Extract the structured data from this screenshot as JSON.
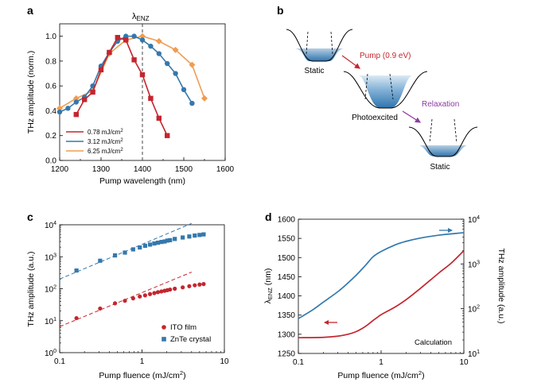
{
  "figure": {
    "panels": [
      "a",
      "b",
      "c",
      "d"
    ]
  },
  "chart_data": [
    {
      "panel": "a",
      "type": "line",
      "annotation": "λ",
      "annotation_sub": "ENZ",
      "annotation_x": 1400,
      "xlabel": "Pump wavelength (nm)",
      "ylabel": "THz amplitude  (norm.)",
      "xlim": [
        1200,
        1600
      ],
      "ylim": [
        0,
        1.1
      ],
      "xticks": [
        1200,
        1300,
        1400,
        1500,
        1600
      ],
      "yticks": [
        "0.0",
        "0.2",
        "0.4",
        "0.6",
        "0.8",
        "1.0"
      ],
      "legend_placement": "bottom-left",
      "series": [
        {
          "name": "0.78 mJ/cm",
          "sup": "2",
          "color": "#c4262e",
          "marker": "square",
          "x": [
            1240,
            1260,
            1280,
            1300,
            1320,
            1340,
            1360,
            1380,
            1400,
            1420,
            1440,
            1460
          ],
          "y": [
            0.37,
            0.49,
            0.55,
            0.73,
            0.87,
            0.99,
            0.97,
            0.81,
            0.69,
            0.5,
            0.34,
            0.2
          ]
        },
        {
          "name": "3.12 mJ/cm",
          "sup": "2",
          "color": "#3478ad",
          "marker": "circle",
          "x": [
            1200,
            1220,
            1240,
            1260,
            1280,
            1300,
            1320,
            1340,
            1360,
            1380,
            1400,
            1420,
            1440,
            1460,
            1480,
            1500,
            1520
          ],
          "y": [
            0.39,
            0.42,
            0.47,
            0.51,
            0.6,
            0.76,
            0.87,
            0.96,
            1.0,
            1.0,
            0.97,
            0.92,
            0.86,
            0.78,
            0.7,
            0.57,
            0.46
          ]
        },
        {
          "name": "6.25 mJ/cm",
          "sup": "2",
          "color": "#ef9d52",
          "marker": "diamond",
          "x": [
            1200,
            1240,
            1280,
            1320,
            1360,
            1400,
            1440,
            1480,
            1520,
            1550
          ],
          "y": [
            0.42,
            0.5,
            0.56,
            0.86,
            0.97,
            1.0,
            0.96,
            0.89,
            0.77,
            0.5
          ]
        }
      ]
    },
    {
      "panel": "c",
      "type": "scatter",
      "xlabel": "Pump fluence (mJ/cm",
      "xlabel_sup": "2",
      "xlabel_end": ")",
      "ylabel": "THz amplitude (a.u.)",
      "xscale": "log",
      "yscale": "log",
      "xlim": [
        0.1,
        10
      ],
      "ylim": [
        1,
        10000
      ],
      "xticks": [
        "0.1",
        "1",
        "10"
      ],
      "yticks_exp": [
        "0",
        "1",
        "2",
        "3",
        "4"
      ],
      "legend_placement": "bottom-right",
      "series": [
        {
          "name": "ITO film",
          "color": "#c4262e",
          "marker": "circle",
          "fit": "dashed",
          "x": [
            0.16,
            0.31,
            0.47,
            0.62,
            0.78,
            0.94,
            1.09,
            1.25,
            1.41,
            1.56,
            1.72,
            1.88,
            2.03,
            2.19,
            2.5,
            3.12,
            3.75,
            4.37,
            5.0,
            5.6
          ],
          "y": [
            12,
            24,
            35,
            42,
            50,
            57,
            62,
            68,
            73,
            78,
            82,
            86,
            90,
            94,
            100,
            110,
            120,
            128,
            135,
            140
          ]
        },
        {
          "name": "ZnTe crystal",
          "color": "#3478ad",
          "marker": "square",
          "fit": "dashed",
          "x": [
            0.16,
            0.31,
            0.47,
            0.62,
            0.78,
            0.94,
            1.09,
            1.25,
            1.41,
            1.56,
            1.72,
            1.88,
            2.03,
            2.19,
            2.5,
            3.12,
            3.75,
            4.37,
            5.0,
            5.6
          ],
          "y": [
            370,
            750,
            1100,
            1350,
            1700,
            1950,
            2200,
            2400,
            2600,
            2750,
            2900,
            3000,
            3200,
            3300,
            3600,
            4000,
            4300,
            4600,
            4800,
            5000
          ]
        }
      ],
      "fits": [
        {
          "series": "ITO film",
          "x": [
            0.1,
            4.0
          ],
          "y": [
            6.5,
            330
          ]
        },
        {
          "series": "ZnTe crystal",
          "x": [
            0.1,
            4.0
          ],
          "y": [
            200,
            11000
          ]
        }
      ]
    },
    {
      "panel": "d",
      "type": "line",
      "annotation": "Calculation",
      "xlabel": "Pump fluence (mJ/cm",
      "xlabel_sup": "2",
      "xlabel_end": ")",
      "ylabel_left": "λ",
      "ylabel_left_sub": "ENZ",
      "ylabel_left_end": " (nm)",
      "ylabel_right": "THz amplitude  (a.u.)",
      "xscale": "log",
      "xlim": [
        0.1,
        10
      ],
      "ylim_left": [
        1250,
        1600
      ],
      "yticks_left": [
        "1250",
        "1300",
        "1350",
        "1400",
        "1450",
        "1500",
        "1550",
        "1600"
      ],
      "yscale_right": "log",
      "ylim_right": [
        10,
        10000
      ],
      "yticks_right_exp": [
        "1",
        "2",
        "3",
        "4"
      ],
      "series": [
        {
          "name": "λENZ",
          "axis": "left",
          "color": "#c4262e",
          "x": [
            0.1,
            0.2,
            0.3,
            0.4,
            0.5,
            0.6,
            0.7,
            0.8,
            0.9,
            1.0,
            1.5,
            2,
            3,
            5,
            7,
            10
          ],
          "y": [
            1291,
            1292,
            1295,
            1300,
            1307,
            1316,
            1326,
            1336,
            1344,
            1351,
            1372,
            1390,
            1420,
            1460,
            1485,
            1518
          ]
        },
        {
          "name": "THz amplitude",
          "axis": "right",
          "color": "#3478ad",
          "x": [
            0.1,
            0.15,
            0.2,
            0.3,
            0.4,
            0.5,
            0.6,
            0.7,
            0.8,
            1.0,
            1.5,
            2,
            3,
            5,
            7,
            10
          ],
          "y": [
            60,
            95,
            140,
            240,
            380,
            560,
            800,
            1100,
            1450,
            1900,
            2700,
            3200,
            3800,
            4400,
            4700,
            5000
          ]
        }
      ]
    }
  ],
  "diagram_b": {
    "panel": "b",
    "state1": "Static",
    "transition1": "Pump (0.9 eV)",
    "state2": "Photoexcited",
    "transition2": "Relaxation",
    "state3": "Static",
    "pump_color": "#c4262e",
    "relax_color": "#8d3ba0",
    "fill_color": "#2f74ae"
  }
}
